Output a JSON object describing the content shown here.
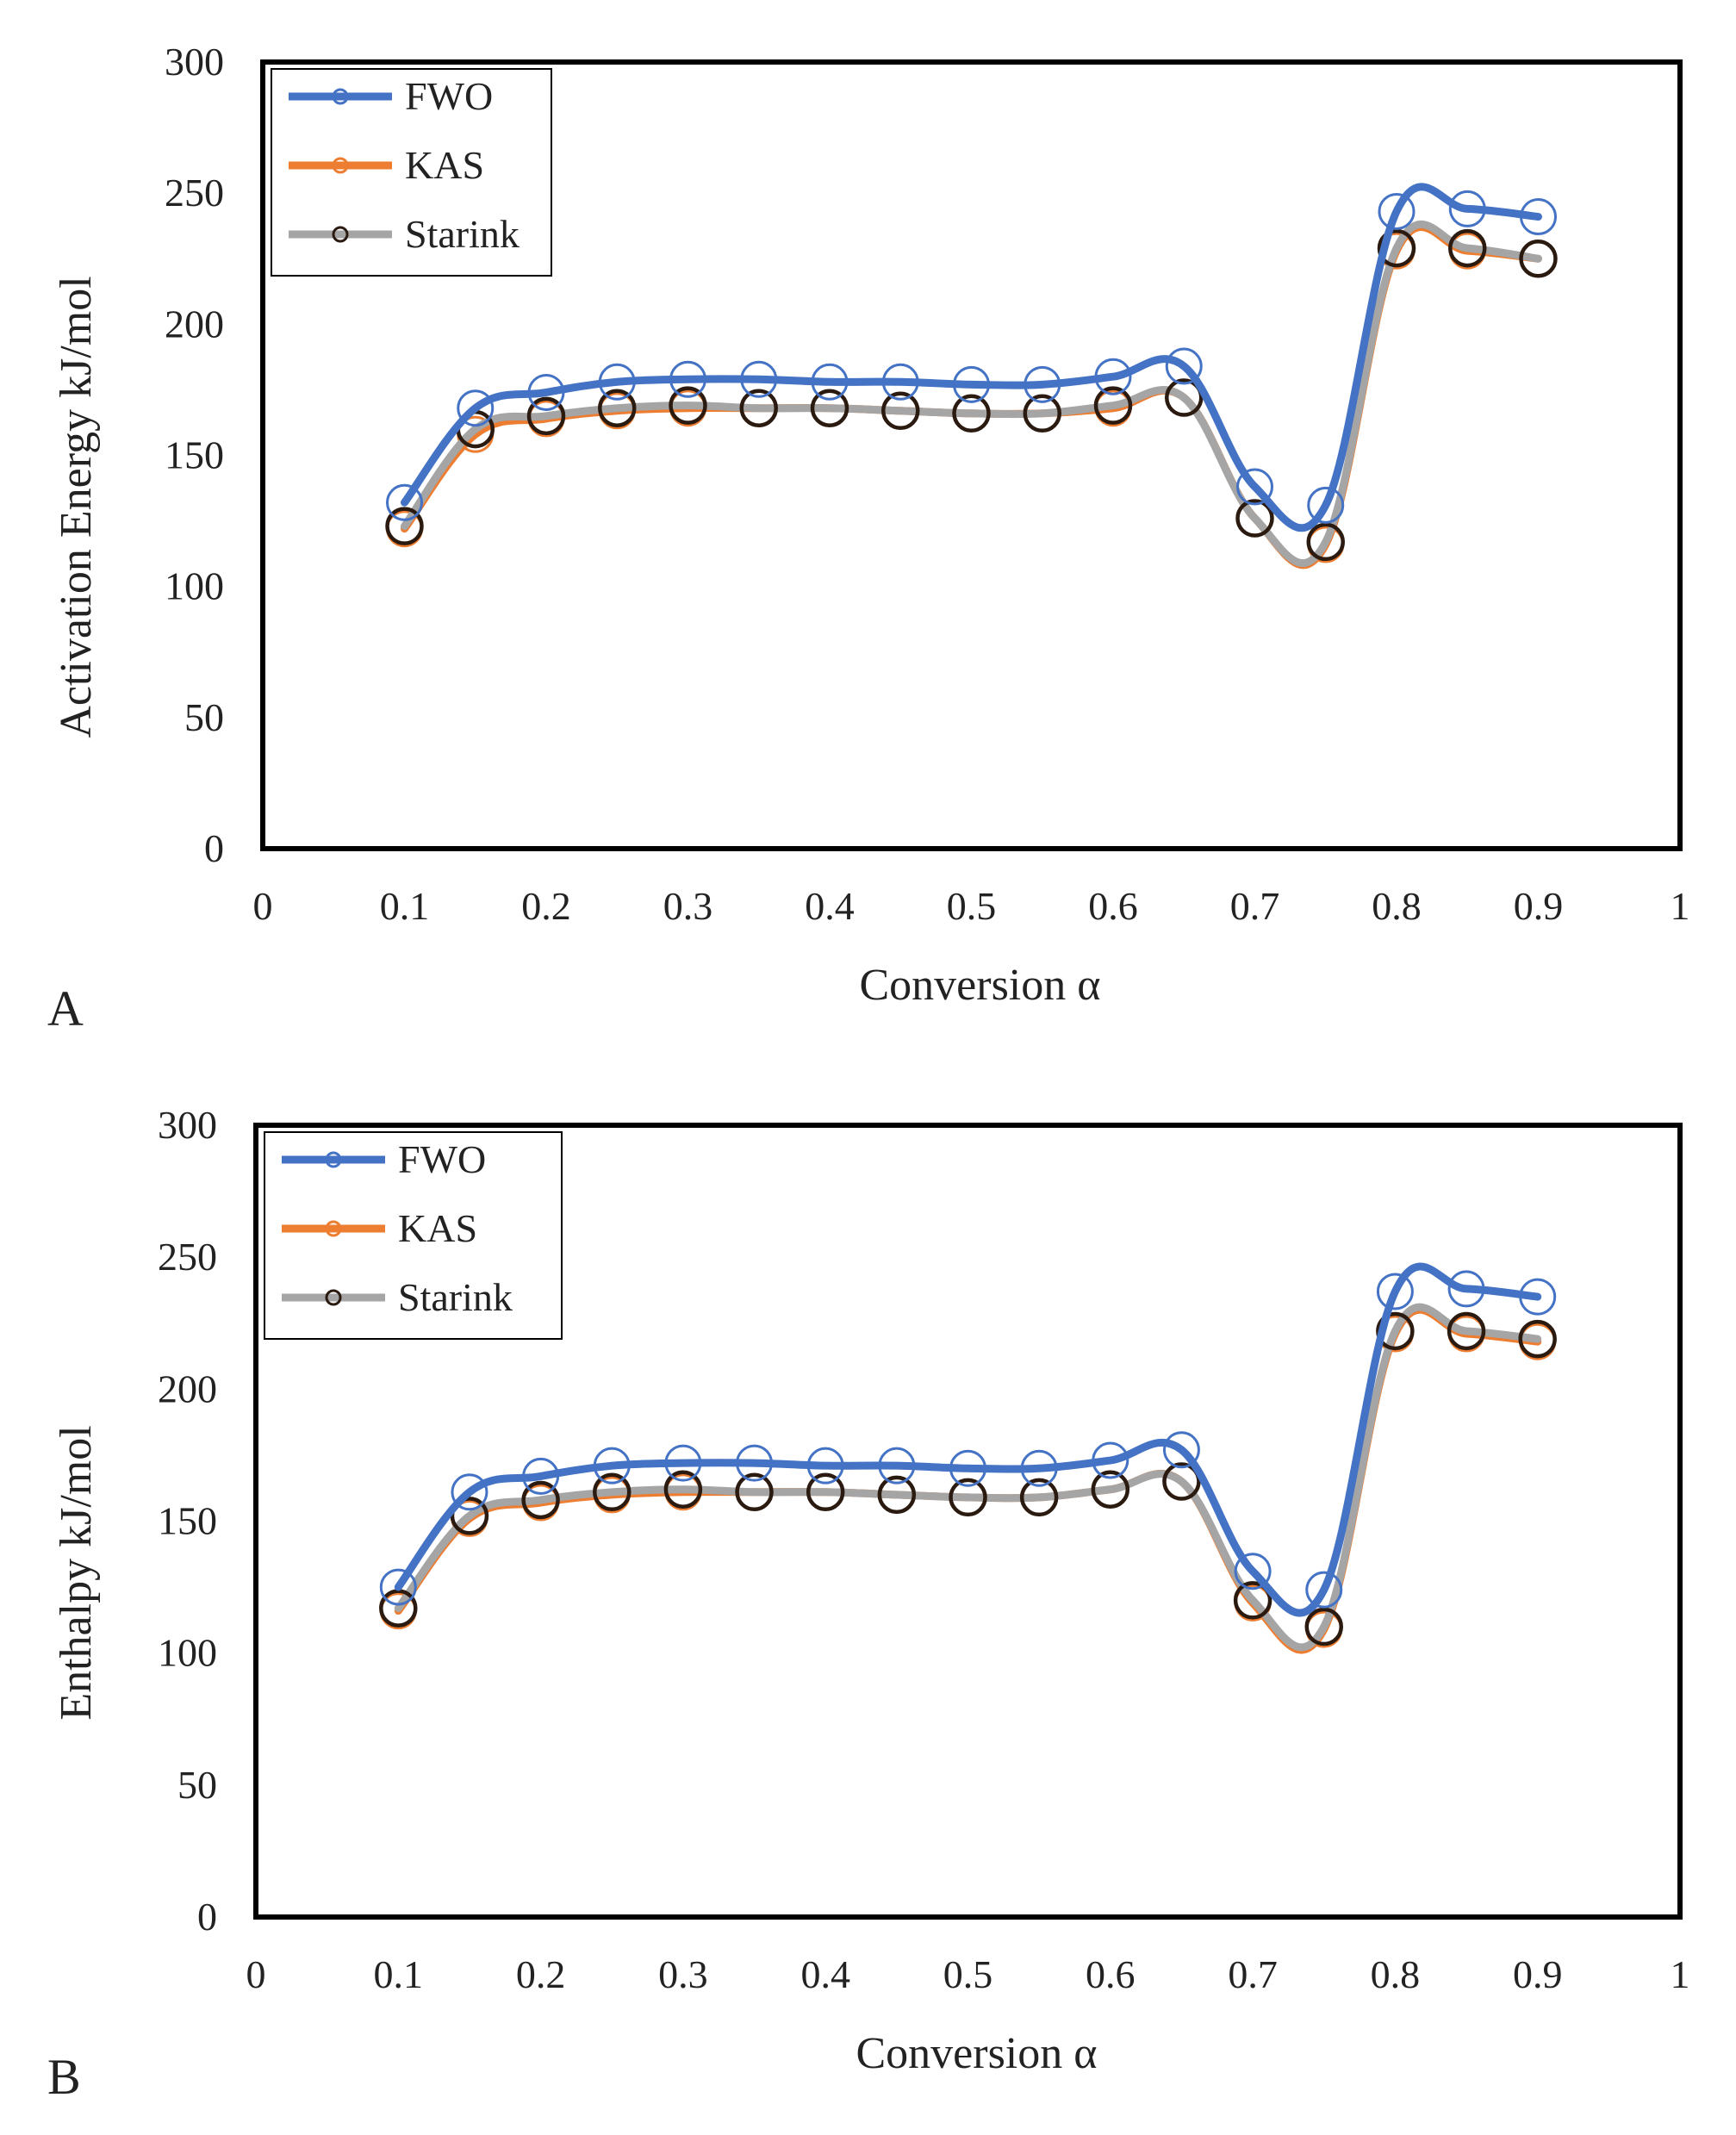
{
  "colors": {
    "fwo": "#4472C4",
    "kas": "#ED7D31",
    "starink": "#A5A5A5",
    "starink_marker": "#2b1a10",
    "frame": "#000000"
  },
  "chart_data": [
    {
      "type": "line",
      "panel_label": "A",
      "xlabel": "Conversion α",
      "ylabel": "Activation Energy  kJ/mol",
      "xlim": [
        0,
        1
      ],
      "ylim": [
        0,
        300
      ],
      "x_ticks": [
        "0",
        "0.1",
        "0.2",
        "0.3",
        "0.4",
        "0.5",
        "0.6",
        "0.7",
        "0.8",
        "0.9",
        "1"
      ],
      "y_ticks": [
        "0",
        "50",
        "100",
        "150",
        "200",
        "250",
        "300"
      ],
      "grid": false,
      "legend": "top-left",
      "x": [
        0.1,
        0.15,
        0.2,
        0.25,
        0.3,
        0.35,
        0.4,
        0.45,
        0.5,
        0.55,
        0.6,
        0.65,
        0.7,
        0.75,
        0.8,
        0.85,
        0.9
      ],
      "series": [
        {
          "name": "FWO",
          "values": [
            132,
            168,
            174,
            178,
            179,
            179,
            178,
            178,
            177,
            177,
            180,
            184,
            138,
            131,
            243,
            244,
            241
          ]
        },
        {
          "name": "KAS",
          "values": [
            122,
            158,
            164,
            167,
            168,
            168,
            168,
            167,
            166,
            166,
            168,
            172,
            126,
            116,
            228,
            228,
            225
          ]
        },
        {
          "name": "Starink",
          "values": [
            123,
            160,
            165,
            168,
            169,
            168,
            168,
            167,
            166,
            166,
            169,
            172,
            126,
            117,
            229,
            229,
            225
          ]
        }
      ]
    },
    {
      "type": "line",
      "panel_label": "B",
      "xlabel": "Conversion α",
      "ylabel": "Enthalpy  kJ/mol",
      "xlim": [
        0,
        1
      ],
      "ylim": [
        0,
        300
      ],
      "x_ticks": [
        "0",
        "0.1",
        "0.2",
        "0.3",
        "0.4",
        "0.5",
        "0.6",
        "0.7",
        "0.8",
        "0.9",
        "1"
      ],
      "y_ticks": [
        "0",
        "50",
        "100",
        "150",
        "200",
        "250",
        "300"
      ],
      "grid": false,
      "legend": "top-left",
      "x": [
        0.1,
        0.15,
        0.2,
        0.25,
        0.3,
        0.35,
        0.4,
        0.45,
        0.5,
        0.55,
        0.6,
        0.65,
        0.7,
        0.75,
        0.8,
        0.85,
        0.9
      ],
      "series": [
        {
          "name": "FWO",
          "values": [
            125,
            161,
            167,
            171,
            172,
            172,
            171,
            171,
            170,
            170,
            173,
            177,
            131,
            124,
            237,
            238,
            235
          ]
        },
        {
          "name": "KAS",
          "values": [
            116,
            151,
            157,
            160,
            161,
            161,
            161,
            160,
            159,
            159,
            162,
            165,
            119,
            109,
            221,
            221,
            218
          ]
        },
        {
          "name": "Starink",
          "values": [
            117,
            152,
            158,
            161,
            162,
            161,
            161,
            160,
            159,
            159,
            162,
            165,
            120,
            110,
            222,
            222,
            219
          ]
        }
      ]
    }
  ]
}
